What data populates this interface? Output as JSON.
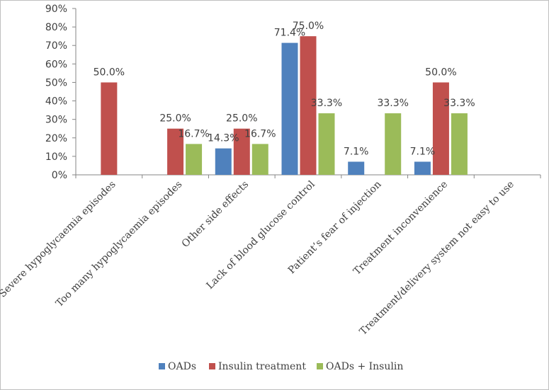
{
  "chart_data": {
    "type": "bar",
    "title": "",
    "xlabel": "",
    "ylabel": "",
    "ylim": [
      0,
      90
    ],
    "yticks": [
      "0%",
      "10%",
      "20%",
      "30%",
      "40%",
      "50%",
      "60%",
      "70%",
      "80%",
      "90%"
    ],
    "grid": false,
    "legend_position": "bottom",
    "categories": [
      "Severe hypoglycaemia episodes",
      "Too many hypoglycaemia episodes",
      "Other side effects",
      "Lack of blood glucose control",
      "Patient’s fear of injection",
      "Treatment inconvenience",
      "Treatment/delivery system not easy to use"
    ],
    "series": [
      {
        "name": "OADs",
        "color": "#4F81BD",
        "values": [
          0,
          0,
          14.3,
          71.4,
          7.1,
          7.1,
          0
        ],
        "labels": [
          "",
          "",
          "14.3%",
          "71.4%",
          "7.1%",
          "7.1%",
          ""
        ]
      },
      {
        "name": "Insulin treatment",
        "color": "#C0504D",
        "values": [
          50.0,
          25.0,
          25.0,
          75.0,
          0,
          50.0,
          0
        ],
        "labels": [
          "50.0%",
          "25.0%",
          "25.0%",
          "75.0%",
          "",
          "50.0%",
          ""
        ]
      },
      {
        "name": "OADs + Insulin",
        "color": "#9BBB59",
        "values": [
          0,
          16.7,
          16.7,
          33.3,
          33.3,
          33.3,
          0
        ],
        "labels": [
          "",
          "16.7%",
          "16.7%",
          "33.3%",
          "33.3%",
          "33.3%",
          ""
        ]
      }
    ]
  }
}
